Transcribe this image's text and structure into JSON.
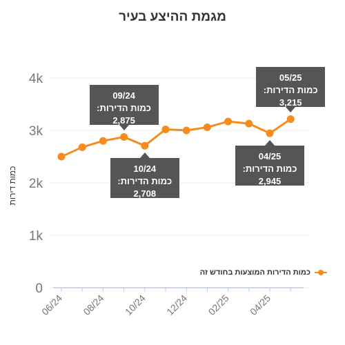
{
  "chart_data": {
    "type": "line",
    "title": "מגמת ההיצע בעיר",
    "ylabel": "כמות דירות",
    "xlabel": "",
    "ylim": [
      0,
      4000
    ],
    "yticks": [
      0,
      1000,
      2000,
      3000,
      4000
    ],
    "ytick_labels": [
      "0",
      "1k",
      "2k",
      "3k",
      "4k"
    ],
    "x": [
      "06/24",
      "07/24",
      "08/24",
      "09/24",
      "10/24",
      "11/24",
      "12/24",
      "01/25",
      "02/25",
      "03/25",
      "04/25",
      "05/25"
    ],
    "x_tick_labels": [
      "06/24",
      "08/24",
      "10/24",
      "12/24",
      "02/25",
      "04/25"
    ],
    "series": [
      {
        "name": "כמות הדירות המוצעות בחודש זה",
        "color": "#f68b1f",
        "values": [
          2500,
          2680,
          2800,
          2875,
          2708,
          3020,
          3000,
          3060,
          3170,
          3130,
          2945,
          3215
        ]
      }
    ],
    "grid": "horizontal",
    "legend_position": "right",
    "annotations": [
      {
        "period": "09/24",
        "label": "כמות הדירות:",
        "value": "2,875"
      },
      {
        "period": "10/24",
        "label": "כמות הדירות:",
        "value": "2,708"
      },
      {
        "period": "04/25",
        "label": "כמות הדירות:",
        "value": "2,945"
      },
      {
        "period": "05/25",
        "label": "כמות הדירות:",
        "value": "3,215"
      }
    ]
  }
}
